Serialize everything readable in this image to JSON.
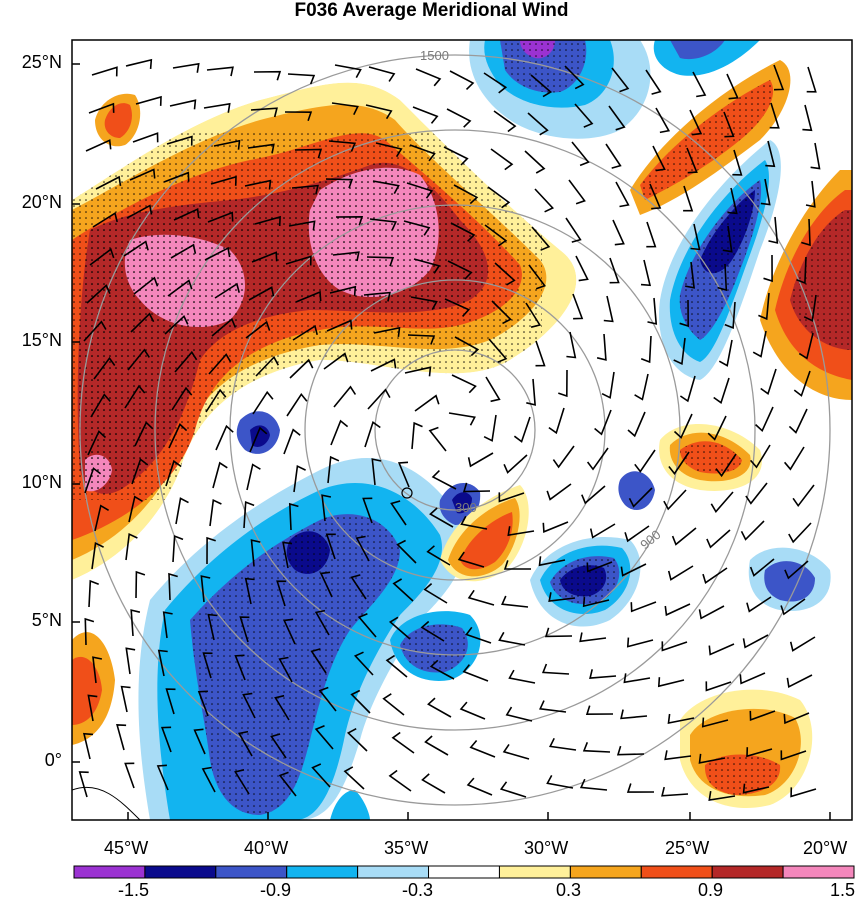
{
  "title": "F036 Average Meridional Wind",
  "lat_labels": [
    "25°N",
    "20°N",
    "15°N",
    "10°N",
    "5°N",
    "0°"
  ],
  "lon_labels": [
    "45°W",
    "40°W",
    "35°W",
    "30°W",
    "25°W",
    "20°W"
  ],
  "range_ring_labels": [
    "300",
    "900",
    "1500"
  ],
  "colorbar": {
    "tick_labels": [
      "-1.5",
      "-0.9",
      "-0.3",
      "0.3",
      "0.9",
      "1.5"
    ],
    "colors": [
      "#9b32d2",
      "#0a0a8c",
      "#3c55c8",
      "#12b4f0",
      "#a8dcf6",
      "#ffffff",
      "#fff09a",
      "#f5a51e",
      "#f04f19",
      "#b42828",
      "#f487bc"
    ]
  }
}
